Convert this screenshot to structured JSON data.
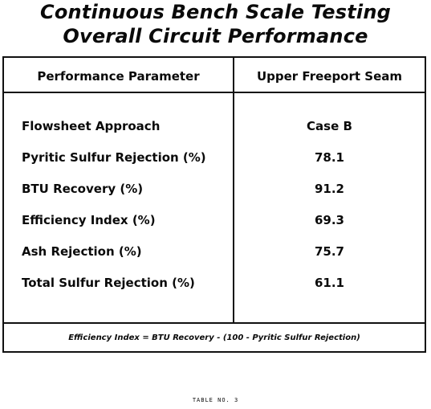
{
  "title": {
    "line1": "Continuous Bench Scale Testing",
    "line2": "Overall Circuit Performance"
  },
  "table": {
    "headers": {
      "parameter": "Performance Parameter",
      "seam": "Upper Freeport Seam"
    },
    "rows": [
      {
        "label": "Flowsheet Approach",
        "value": "Case B"
      },
      {
        "label": "Pyritic Sulfur Rejection (%)",
        "value": "78.1"
      },
      {
        "label": "BTU Recovery (%)",
        "value": "91.2"
      },
      {
        "label": "Efficiency Index (%)",
        "value": "69.3"
      },
      {
        "label": "Ash Rejection (%)",
        "value": "75.7"
      },
      {
        "label": "Total Sulfur Rejection (%)",
        "value": "61.1"
      }
    ],
    "footnote": "Efficiency Index = BTU Recovery - (100 - Pyritic Sulfur Rejection)"
  },
  "table_number": "TABLE NO. 3"
}
